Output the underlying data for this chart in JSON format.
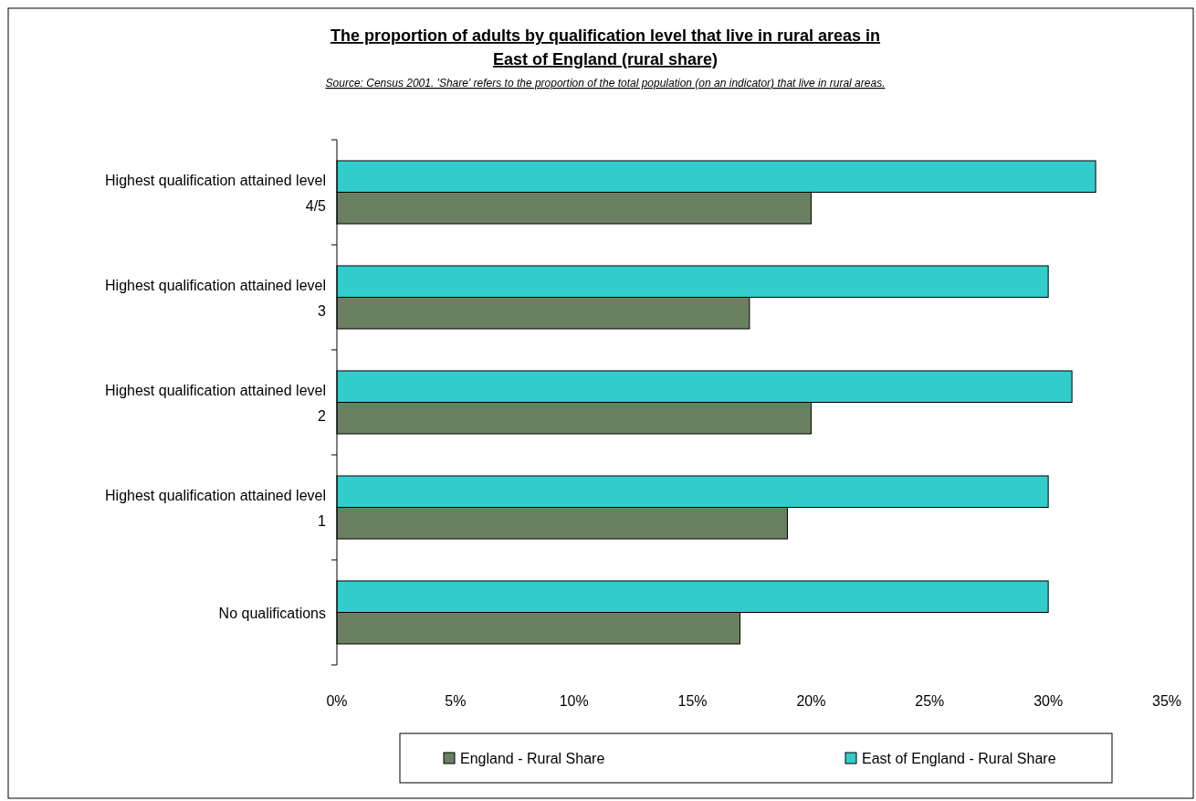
{
  "chart_data": {
    "type": "bar",
    "orientation": "horizontal",
    "title": "The proportion of adults by qualification level that live in rural areas in East of England (rural share)",
    "annotations": [
      "Source: Census 2001. 'Share' refers to the proportion of the total population (on an indicator) that live in rural areas."
    ],
    "categories": [
      "Highest qualification attained level 4/5",
      "Highest qualification attained level 3",
      "Highest qualification attained level 2",
      "Highest qualification attained level 1",
      "No qualifications"
    ],
    "series": [
      {
        "name": "England - Rural Share",
        "color": "#6b8060",
        "values": [
          20,
          17.4,
          20,
          19,
          17
        ]
      },
      {
        "name": "East of England - Rural Share",
        "color": "#33cccc",
        "values": [
          32,
          30,
          31,
          30,
          30
        ]
      }
    ],
    "xlim": [
      0,
      35
    ],
    "xticks": [
      {
        "value": 0,
        "label": "0%"
      },
      {
        "value": 5,
        "label": "5%"
      },
      {
        "value": 10,
        "label": "10%"
      },
      {
        "value": 15,
        "label": "15%"
      },
      {
        "value": 20,
        "label": "20%"
      },
      {
        "value": 25,
        "label": "25%"
      },
      {
        "value": 30,
        "label": "30%"
      },
      {
        "value": 35,
        "label": "35%"
      }
    ],
    "grid": false,
    "legend": "bottom"
  }
}
